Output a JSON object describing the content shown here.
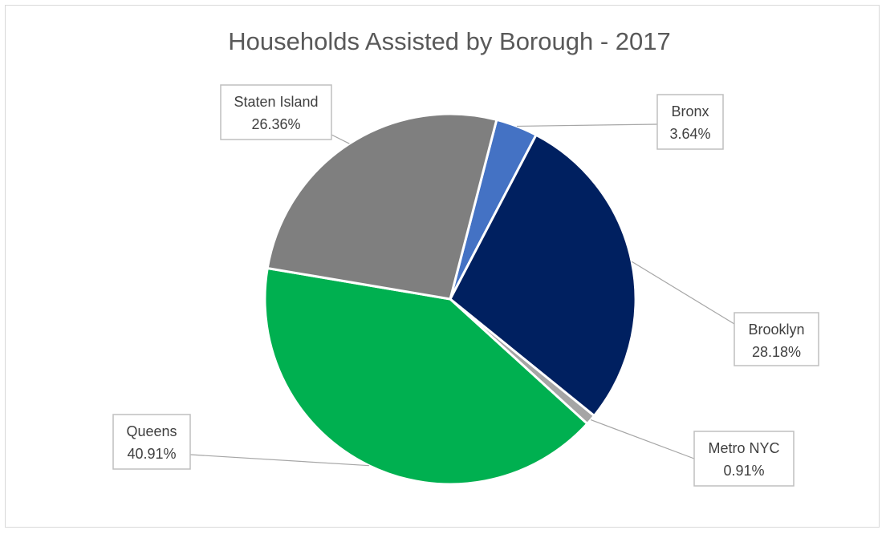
{
  "chart_data": {
    "type": "pie",
    "title": "Households Assisted by Borough - 2017",
    "start_category": "Bronx",
    "direction": "clockwise",
    "slices": [
      {
        "label": "Bronx",
        "value": 3.64,
        "display": "3.64%",
        "color": "#4472c4"
      },
      {
        "label": "Brooklyn",
        "value": 28.18,
        "display": "28.18%",
        "color": "#002060"
      },
      {
        "label": "Metro NYC",
        "value": 0.91,
        "display": "0.91%",
        "color": "#a5a5a5"
      },
      {
        "label": "Queens",
        "value": 40.91,
        "display": "40.91%",
        "color": "#00b050"
      },
      {
        "label": "Staten Island",
        "value": 26.36,
        "display": "26.36%",
        "color": "#7f7f7f"
      }
    ],
    "legend": "none",
    "data_labels": "category name and percentage, outside with leader lines"
  }
}
